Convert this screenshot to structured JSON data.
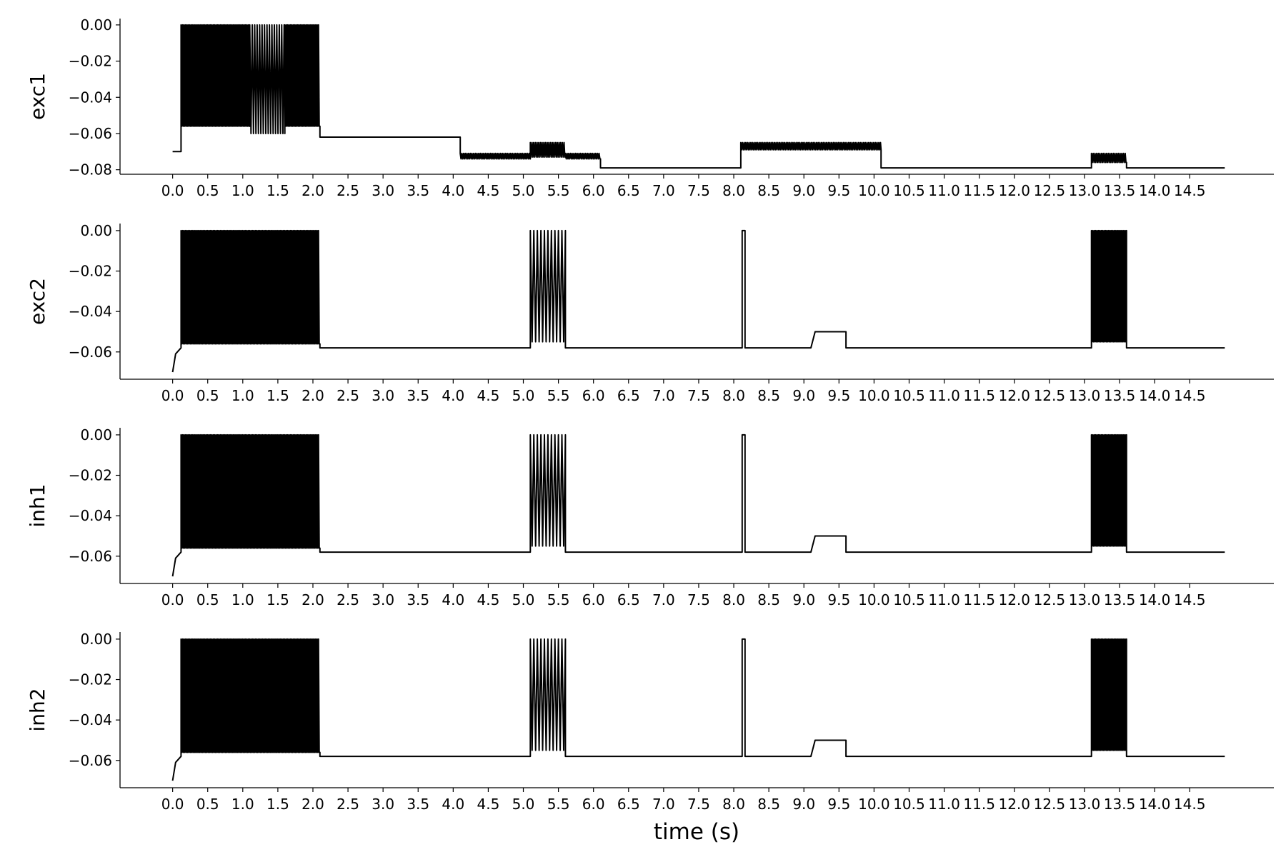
{
  "chart_data": {
    "type": "line",
    "xlabel": "time (s)",
    "xlim": [
      -0.75,
      15.7
    ],
    "x_ticks": [
      "0.0",
      "0.5",
      "1.0",
      "1.5",
      "2.0",
      "2.5",
      "3.0",
      "3.5",
      "4.0",
      "4.5",
      "5.0",
      "5.5",
      "6.0",
      "6.5",
      "7.0",
      "7.5",
      "8.0",
      "8.5",
      "9.0",
      "9.5",
      "10.0",
      "10.5",
      "11.0",
      "11.5",
      "12.0",
      "12.5",
      "13.0",
      "13.5",
      "14.0",
      "14.5"
    ],
    "line_color": "#000000",
    "panels": [
      {
        "ylabel": "exc1",
        "ylim": [
          -0.0825,
          0.0035
        ],
        "y_ticks": [
          "0.00",
          "−0.02",
          "−0.04",
          "−0.06",
          "−0.08"
        ],
        "segments": [
          {
            "t0": 0.0,
            "t1": 0.12,
            "kind": "rest",
            "v": -0.07
          },
          {
            "t0": 0.12,
            "t1": 1.1,
            "kind": "burst",
            "low": -0.056,
            "high": 0.0,
            "period": 0.02
          },
          {
            "t0": 1.1,
            "t1": 1.6,
            "kind": "burst",
            "low": -0.06,
            "high": 0.0,
            "period": 0.035
          },
          {
            "t0": 1.6,
            "t1": 2.1,
            "kind": "burst",
            "low": -0.056,
            "high": 0.0,
            "period": 0.02
          },
          {
            "t0": 2.1,
            "t1": 4.1,
            "kind": "rest",
            "v": -0.062
          },
          {
            "t0": 4.1,
            "t1": 5.1,
            "kind": "band",
            "low": -0.074,
            "high": -0.071
          },
          {
            "t0": 5.1,
            "t1": 5.6,
            "kind": "band",
            "low": -0.073,
            "high": -0.065
          },
          {
            "t0": 5.6,
            "t1": 6.1,
            "kind": "band",
            "low": -0.074,
            "high": -0.071
          },
          {
            "t0": 6.1,
            "t1": 8.1,
            "kind": "rest",
            "v": -0.079
          },
          {
            "t0": 8.1,
            "t1": 10.1,
            "kind": "band",
            "low": -0.069,
            "high": -0.065
          },
          {
            "t0": 10.1,
            "t1": 13.1,
            "kind": "rest",
            "v": -0.079
          },
          {
            "t0": 13.1,
            "t1": 13.6,
            "kind": "band",
            "low": -0.076,
            "high": -0.071
          },
          {
            "t0": 13.6,
            "t1": 15.0,
            "kind": "rest",
            "v": -0.079
          }
        ]
      },
      {
        "ylabel": "exc2",
        "ylim": [
          -0.0735,
          0.0035
        ],
        "y_ticks": [
          "0.00",
          "−0.02",
          "−0.04",
          "−0.06"
        ],
        "start_v": -0.07,
        "segments": [
          {
            "t0": 0.0,
            "t1": 0.12,
            "kind": "rise",
            "from": -0.07,
            "to": -0.058
          },
          {
            "t0": 0.12,
            "t1": 2.1,
            "kind": "burst",
            "low": -0.056,
            "high": 0.0,
            "period": 0.02
          },
          {
            "t0": 2.1,
            "t1": 5.1,
            "kind": "rest",
            "v": -0.058
          },
          {
            "t0": 5.1,
            "t1": 5.6,
            "kind": "burst",
            "low": -0.055,
            "high": 0.0,
            "period": 0.05
          },
          {
            "t0": 5.6,
            "t1": 8.12,
            "kind": "rest",
            "v": -0.058
          },
          {
            "t0": 8.12,
            "t1": 8.16,
            "kind": "spike",
            "high": 0.0
          },
          {
            "t0": 8.16,
            "t1": 9.1,
            "kind": "rest",
            "v": -0.058
          },
          {
            "t0": 9.1,
            "t1": 9.6,
            "kind": "plateau",
            "v": -0.05
          },
          {
            "t0": 9.6,
            "t1": 13.1,
            "kind": "rest",
            "v": -0.058
          },
          {
            "t0": 13.1,
            "t1": 13.6,
            "kind": "burst",
            "low": -0.055,
            "high": 0.0,
            "period": 0.02
          },
          {
            "t0": 13.6,
            "t1": 15.0,
            "kind": "rest",
            "v": -0.058
          }
        ]
      },
      {
        "ylabel": "inh1",
        "ylim": [
          -0.0735,
          0.0035
        ],
        "y_ticks": [
          "0.00",
          "−0.02",
          "−0.04",
          "−0.06"
        ],
        "start_v": -0.07,
        "segments": [
          {
            "t0": 0.0,
            "t1": 0.12,
            "kind": "rise",
            "from": -0.07,
            "to": -0.058
          },
          {
            "t0": 0.12,
            "t1": 2.1,
            "kind": "burst",
            "low": -0.056,
            "high": 0.0,
            "period": 0.02
          },
          {
            "t0": 2.1,
            "t1": 5.1,
            "kind": "rest",
            "v": -0.058
          },
          {
            "t0": 5.1,
            "t1": 5.6,
            "kind": "burst",
            "low": -0.055,
            "high": 0.0,
            "period": 0.05
          },
          {
            "t0": 5.6,
            "t1": 8.12,
            "kind": "rest",
            "v": -0.058
          },
          {
            "t0": 8.12,
            "t1": 8.16,
            "kind": "spike",
            "high": 0.0
          },
          {
            "t0": 8.16,
            "t1": 9.1,
            "kind": "rest",
            "v": -0.058
          },
          {
            "t0": 9.1,
            "t1": 9.6,
            "kind": "plateau",
            "v": -0.05
          },
          {
            "t0": 9.6,
            "t1": 13.1,
            "kind": "rest",
            "v": -0.058
          },
          {
            "t0": 13.1,
            "t1": 13.6,
            "kind": "burst",
            "low": -0.055,
            "high": 0.0,
            "period": 0.02
          },
          {
            "t0": 13.6,
            "t1": 15.0,
            "kind": "rest",
            "v": -0.058
          }
        ]
      },
      {
        "ylabel": "inh2",
        "ylim": [
          -0.0735,
          0.0035
        ],
        "y_ticks": [
          "0.00",
          "−0.02",
          "−0.04",
          "−0.06"
        ],
        "start_v": -0.07,
        "segments": [
          {
            "t0": 0.0,
            "t1": 0.12,
            "kind": "rise",
            "from": -0.07,
            "to": -0.058
          },
          {
            "t0": 0.12,
            "t1": 2.1,
            "kind": "burst",
            "low": -0.056,
            "high": 0.0,
            "period": 0.02
          },
          {
            "t0": 2.1,
            "t1": 5.1,
            "kind": "rest",
            "v": -0.058
          },
          {
            "t0": 5.1,
            "t1": 5.6,
            "kind": "burst",
            "low": -0.055,
            "high": 0.0,
            "period": 0.05
          },
          {
            "t0": 5.6,
            "t1": 8.12,
            "kind": "rest",
            "v": -0.058
          },
          {
            "t0": 8.12,
            "t1": 8.16,
            "kind": "spike",
            "high": 0.0
          },
          {
            "t0": 8.16,
            "t1": 9.1,
            "kind": "rest",
            "v": -0.058
          },
          {
            "t0": 9.1,
            "t1": 9.6,
            "kind": "plateau",
            "v": -0.05
          },
          {
            "t0": 9.6,
            "t1": 13.1,
            "kind": "rest",
            "v": -0.058
          },
          {
            "t0": 13.1,
            "t1": 13.6,
            "kind": "burst",
            "low": -0.055,
            "high": 0.0,
            "period": 0.02
          },
          {
            "t0": 13.6,
            "t1": 15.0,
            "kind": "rest",
            "v": -0.058
          }
        ]
      }
    ]
  }
}
